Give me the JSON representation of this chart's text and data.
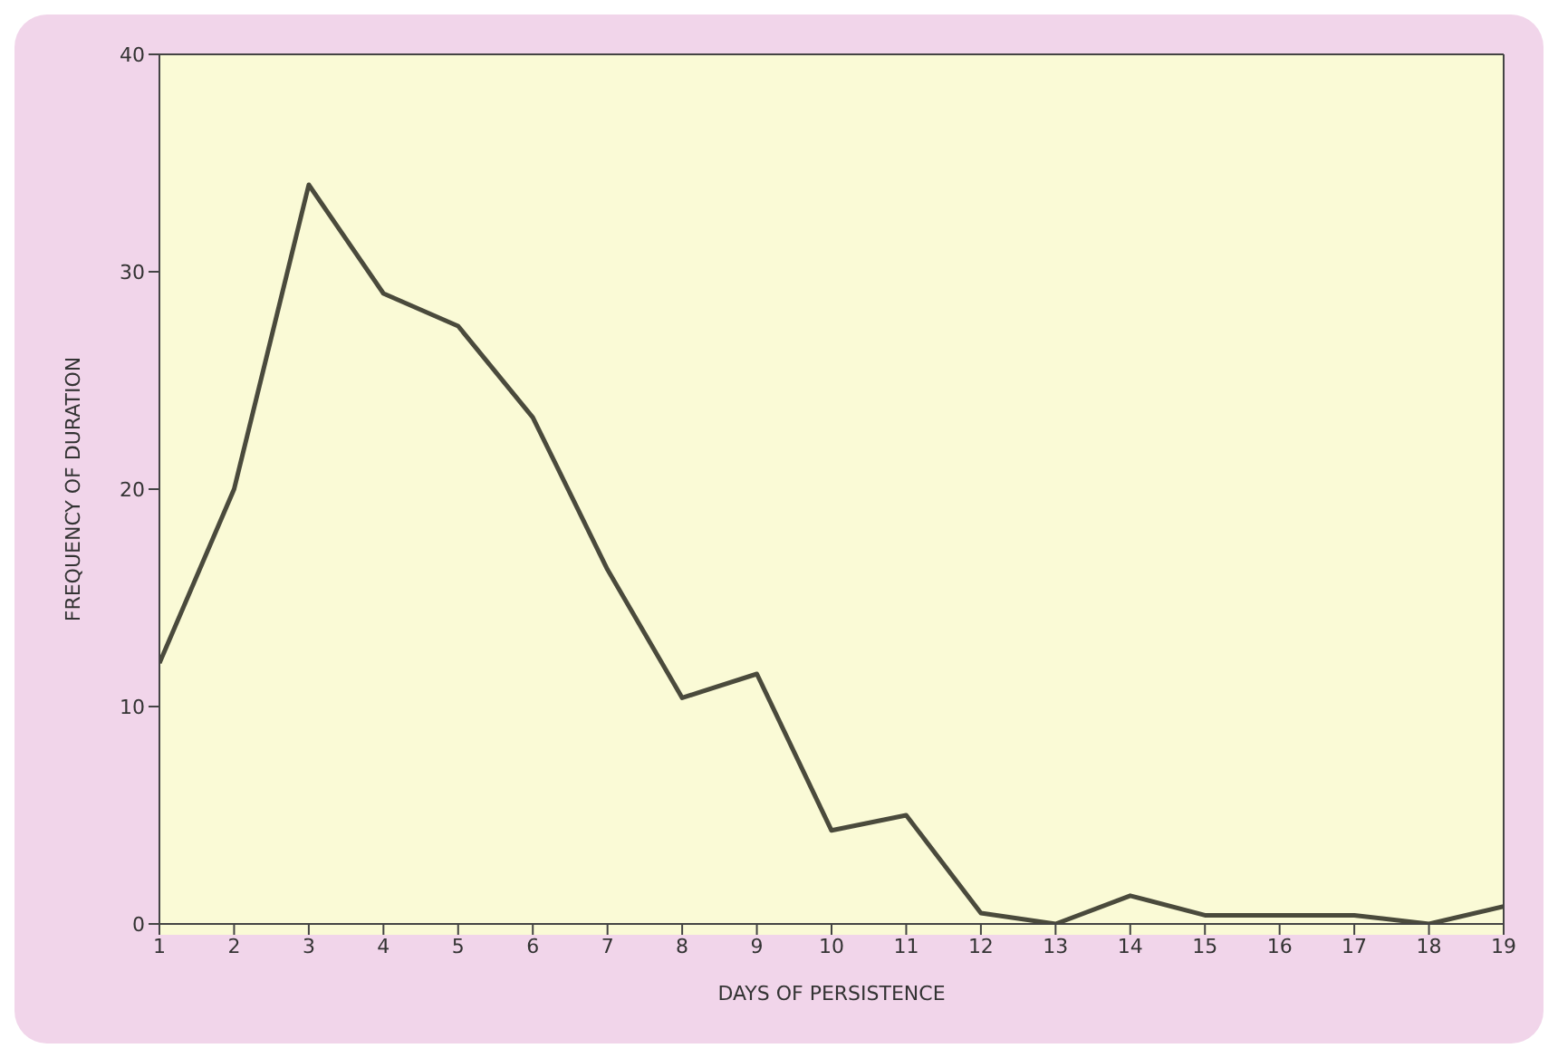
{
  "chart_data": {
    "type": "line",
    "xlabel": "DAYS OF PERSISTENCE",
    "ylabel": "FREQUENCY OF DURATION",
    "x": [
      1,
      2,
      3,
      4,
      5,
      6,
      7,
      8,
      9,
      10,
      11,
      12,
      13,
      14,
      15,
      16,
      17,
      18,
      19
    ],
    "series": [
      {
        "color": "#4a4a3c",
        "values": [
          12,
          20,
          34,
          29,
          27.5,
          23.3,
          16.3,
          10.4,
          11.5,
          4.3,
          5,
          0.5,
          0,
          1.3,
          0.4,
          0.4,
          0.4,
          0,
          0.8
        ]
      }
    ],
    "xlim": [
      1,
      19
    ],
    "xticks": [
      1,
      2,
      3,
      4,
      5,
      6,
      7,
      8,
      9,
      10,
      11,
      12,
      13,
      14,
      15,
      16,
      17,
      18,
      19
    ],
    "ylim": [
      0,
      40
    ],
    "yticks": [
      0,
      10,
      20,
      30,
      40
    ],
    "marker": "none",
    "line_style": "solid"
  }
}
